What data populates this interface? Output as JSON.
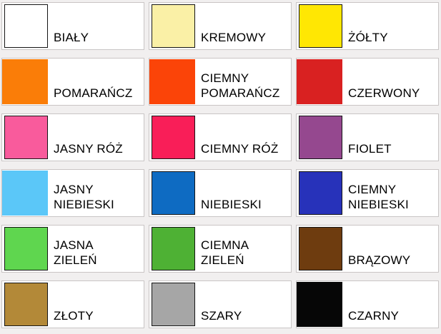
{
  "page": {
    "background_color": "#F1EFEF",
    "cell_background": "#FFFFFF",
    "cell_border_color": "#C9C5C5",
    "swatch_outline_color": "#151515",
    "text_color": "#000000"
  },
  "palette": {
    "items": [
      {
        "id": "bialy",
        "label": "BIAŁY",
        "color": "#FFFFFF",
        "bordered": true
      },
      {
        "id": "kremowy",
        "label": "KREMOWY",
        "color": "#FAF0A6",
        "bordered": true
      },
      {
        "id": "zolty",
        "label": "ŻÓŁTY",
        "color": "#FFE703",
        "bordered": true
      },
      {
        "id": "pomarancz",
        "label": "POMARAŃCZ",
        "color": "#FA7D08",
        "bordered": false
      },
      {
        "id": "ciemny-pomarancz",
        "label": "CIEMNY\nPOMARAŃCZ",
        "color": "#FB4408",
        "bordered": false
      },
      {
        "id": "czerwony",
        "label": "CZERWONY",
        "color": "#D92121",
        "bordered": false
      },
      {
        "id": "jasny-roz",
        "label": "JASNY RÓŻ",
        "color": "#F95B9C",
        "bordered": true
      },
      {
        "id": "ciemny-roz",
        "label": "CIEMNY RÓŻ",
        "color": "#F91E58",
        "bordered": true
      },
      {
        "id": "fiolet",
        "label": "FIOLET",
        "color": "#95488F",
        "bordered": true
      },
      {
        "id": "jasny-niebieski",
        "label": "JASNY\nNIEBIESKI",
        "color": "#5BC7F8",
        "bordered": false
      },
      {
        "id": "niebieski",
        "label": "NIEBIESKI",
        "color": "#0E6BC2",
        "bordered": true
      },
      {
        "id": "ciemny-niebieski",
        "label": "CIEMNY\nNIEBIESKI",
        "color": "#2732BA",
        "bordered": true
      },
      {
        "id": "jasna-zielen",
        "label": "JASNA\nZIELEŃ",
        "color": "#5FD64F",
        "bordered": true
      },
      {
        "id": "ciemna-zielen",
        "label": "CIEMNA\nZIELEŃ",
        "color": "#4EB134",
        "bordered": true
      },
      {
        "id": "brazowy",
        "label": "BRĄZOWY",
        "color": "#6E3C0F",
        "bordered": true
      },
      {
        "id": "zloty",
        "label": "ZŁOTY",
        "color": "#B38938",
        "bordered": true
      },
      {
        "id": "szary",
        "label": "SZARY",
        "color": "#A6A6A6",
        "bordered": true
      },
      {
        "id": "czarny",
        "label": "CZARNY",
        "color": "#060606",
        "bordered": false
      }
    ]
  }
}
